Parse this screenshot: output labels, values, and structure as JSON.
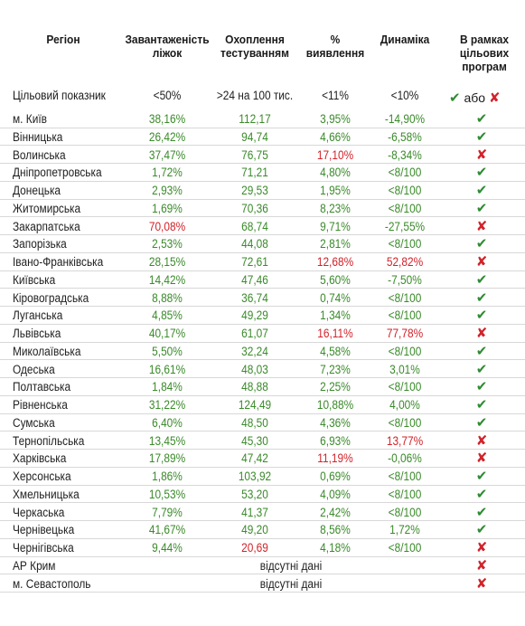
{
  "chart_data": {
    "type": "table",
    "columns": [
      "Регіон",
      "Завантаженість ліжок",
      "Охоплення тестуванням",
      "% виявлення",
      "Динаміка",
      "В рамках цільових програм"
    ],
    "header_lines": [
      [
        "Регіон"
      ],
      [
        "Завантаженість",
        "ліжок"
      ],
      [
        "Охоплення",
        "тестуванням"
      ],
      [
        "%",
        "виявлення"
      ],
      [
        "Динаміка"
      ],
      [
        "В рамках",
        "цільових",
        "програм"
      ]
    ],
    "target": {
      "label": "Цільовий показник",
      "values": [
        "<50%",
        ">24 на 100 тис.",
        "<11%",
        "<10%"
      ],
      "legend_or": "або",
      "legend_yes_symbol": "✔",
      "legend_no_symbol": "✘"
    },
    "colors": {
      "good": "#3a8a2a",
      "bad": "#d2232a",
      "check": "#2e8b32",
      "cross": "#d2232a"
    },
    "rows": [
      {
        "region": "м. Київ",
        "beds": "38,16%",
        "beds_s": "g",
        "tests": "112,17",
        "tests_s": "g",
        "rate": "3,95%",
        "rate_s": "g",
        "dyn": "-14,90%",
        "dyn_s": "g",
        "ok": true
      },
      {
        "region": "Вінницька",
        "beds": "26,42%",
        "beds_s": "g",
        "tests": "94,74",
        "tests_s": "g",
        "rate": "4,66%",
        "rate_s": "g",
        "dyn": "-6,58%",
        "dyn_s": "g",
        "ok": true
      },
      {
        "region": "Волинська",
        "beds": "37,47%",
        "beds_s": "g",
        "tests": "76,75",
        "tests_s": "g",
        "rate": "17,10%",
        "rate_s": "r",
        "dyn": "-8,34%",
        "dyn_s": "g",
        "ok": false
      },
      {
        "region": "Дніпропетровська",
        "beds": "1,72%",
        "beds_s": "g",
        "tests": "71,21",
        "tests_s": "g",
        "rate": "4,80%",
        "rate_s": "g",
        "dyn": "<8/100",
        "dyn_s": "g",
        "ok": true
      },
      {
        "region": "Донецька",
        "beds": "2,93%",
        "beds_s": "g",
        "tests": "29,53",
        "tests_s": "g",
        "rate": "1,95%",
        "rate_s": "g",
        "dyn": "<8/100",
        "dyn_s": "g",
        "ok": true
      },
      {
        "region": "Житомирська",
        "beds": "1,69%",
        "beds_s": "g",
        "tests": "70,36",
        "tests_s": "g",
        "rate": "8,23%",
        "rate_s": "g",
        "dyn": "<8/100",
        "dyn_s": "g",
        "ok": true
      },
      {
        "region": "Закарпатська",
        "beds": "70,08%",
        "beds_s": "r",
        "tests": "68,74",
        "tests_s": "g",
        "rate": "9,71%",
        "rate_s": "g",
        "dyn": "-27,55%",
        "dyn_s": "g",
        "ok": false
      },
      {
        "region": "Запорізька",
        "beds": "2,53%",
        "beds_s": "g",
        "tests": "44,08",
        "tests_s": "g",
        "rate": "2,81%",
        "rate_s": "g",
        "dyn": "<8/100",
        "dyn_s": "g",
        "ok": true
      },
      {
        "region": "Івано-Франківська",
        "beds": "28,15%",
        "beds_s": "g",
        "tests": "72,61",
        "tests_s": "g",
        "rate": "12,68%",
        "rate_s": "r",
        "dyn": "52,82%",
        "dyn_s": "r",
        "ok": false
      },
      {
        "region": "Київська",
        "beds": "14,42%",
        "beds_s": "g",
        "tests": "47,46",
        "tests_s": "g",
        "rate": "5,60%",
        "rate_s": "g",
        "dyn": "-7,50%",
        "dyn_s": "g",
        "ok": true
      },
      {
        "region": "Кіровоградська",
        "beds": "8,88%",
        "beds_s": "g",
        "tests": "36,74",
        "tests_s": "g",
        "rate": "0,74%",
        "rate_s": "g",
        "dyn": "<8/100",
        "dyn_s": "g",
        "ok": true
      },
      {
        "region": "Луганська",
        "beds": "4,85%",
        "beds_s": "g",
        "tests": "49,29",
        "tests_s": "g",
        "rate": "1,34%",
        "rate_s": "g",
        "dyn": "<8/100",
        "dyn_s": "g",
        "ok": true
      },
      {
        "region": "Львівська",
        "beds": "40,17%",
        "beds_s": "g",
        "tests": "61,07",
        "tests_s": "g",
        "rate": "16,11%",
        "rate_s": "r",
        "dyn": "77,78%",
        "dyn_s": "r",
        "ok": false
      },
      {
        "region": "Миколаївська",
        "beds": "5,50%",
        "beds_s": "g",
        "tests": "32,24",
        "tests_s": "g",
        "rate": "4,58%",
        "rate_s": "g",
        "dyn": "<8/100",
        "dyn_s": "g",
        "ok": true
      },
      {
        "region": "Одеська",
        "beds": "16,61%",
        "beds_s": "g",
        "tests": "48,03",
        "tests_s": "g",
        "rate": "7,23%",
        "rate_s": "g",
        "dyn": "3,01%",
        "dyn_s": "g",
        "ok": true
      },
      {
        "region": "Полтавська",
        "beds": "1,84%",
        "beds_s": "g",
        "tests": "48,88",
        "tests_s": "g",
        "rate": "2,25%",
        "rate_s": "g",
        "dyn": "<8/100",
        "dyn_s": "g",
        "ok": true
      },
      {
        "region": "Рівненська",
        "beds": "31,22%",
        "beds_s": "g",
        "tests": "124,49",
        "tests_s": "g",
        "rate": "10,88%",
        "rate_s": "g",
        "dyn": "4,00%",
        "dyn_s": "g",
        "ok": true
      },
      {
        "region": "Сумська",
        "beds": "6,40%",
        "beds_s": "g",
        "tests": "48,50",
        "tests_s": "g",
        "rate": "4,36%",
        "rate_s": "g",
        "dyn": "<8/100",
        "dyn_s": "g",
        "ok": true
      },
      {
        "region": "Тернопільська",
        "beds": "13,45%",
        "beds_s": "g",
        "tests": "45,30",
        "tests_s": "g",
        "rate": "6,93%",
        "rate_s": "g",
        "dyn": "13,77%",
        "dyn_s": "r",
        "ok": false
      },
      {
        "region": "Харківська",
        "beds": "17,89%",
        "beds_s": "g",
        "tests": "47,42",
        "tests_s": "g",
        "rate": "11,19%",
        "rate_s": "r",
        "dyn": "-0,06%",
        "dyn_s": "g",
        "ok": false
      },
      {
        "region": "Херсонська",
        "beds": "1,86%",
        "beds_s": "g",
        "tests": "103,92",
        "tests_s": "g",
        "rate": "0,69%",
        "rate_s": "g",
        "dyn": "<8/100",
        "dyn_s": "g",
        "ok": true
      },
      {
        "region": "Хмельницька",
        "beds": "10,53%",
        "beds_s": "g",
        "tests": "53,20",
        "tests_s": "g",
        "rate": "4,09%",
        "rate_s": "g",
        "dyn": "<8/100",
        "dyn_s": "g",
        "ok": true
      },
      {
        "region": "Черкаська",
        "beds": "7,79%",
        "beds_s": "g",
        "tests": "41,37",
        "tests_s": "g",
        "rate": "2,42%",
        "rate_s": "g",
        "dyn": "<8/100",
        "dyn_s": "g",
        "ok": true
      },
      {
        "region": "Чернівецька",
        "beds": "41,67%",
        "beds_s": "g",
        "tests": "49,20",
        "tests_s": "g",
        "rate": "8,56%",
        "rate_s": "g",
        "dyn": "1,72%",
        "dyn_s": "g",
        "ok": true
      },
      {
        "region": "Чернігівська",
        "beds": "9,44%",
        "beds_s": "g",
        "tests": "20,69",
        "tests_s": "r",
        "rate": "4,18%",
        "rate_s": "g",
        "dyn": "<8/100",
        "dyn_s": "g",
        "ok": false
      },
      {
        "region": "АР Крим",
        "missing": "відсутні дані",
        "ok": false
      },
      {
        "region": "м. Севастополь",
        "missing": "відсутні дані",
        "ok": false
      }
    ]
  }
}
